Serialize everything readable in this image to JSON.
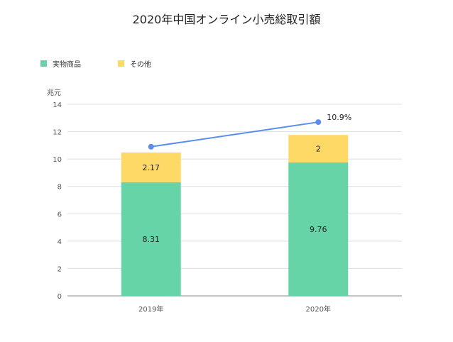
{
  "chart_data": {
    "type": "bar",
    "title": "2020年中国オンライン小売総取引額",
    "ylabel": "兆元",
    "xlabel": "",
    "categories": [
      "2019年",
      "2020年"
    ],
    "ylim": [
      0,
      14
    ],
    "yticks": [
      0,
      2,
      4,
      6,
      8,
      10,
      12,
      14
    ],
    "stacked": true,
    "series": [
      {
        "name": "実物商品",
        "values": [
          8.31,
          9.76
        ],
        "labels": [
          "8.31",
          "9.76"
        ],
        "color": "#66d4a6"
      },
      {
        "name": "その他",
        "values": [
          2.17,
          2.0
        ],
        "labels": [
          "2.17",
          "2"
        ],
        "color": "#ffd966"
      }
    ],
    "line": {
      "values": [
        10.9,
        12.7
      ],
      "labels": [
        "",
        "10.9%"
      ],
      "color": "#5b8def"
    },
    "grid": true,
    "legend_position": "top-left"
  }
}
